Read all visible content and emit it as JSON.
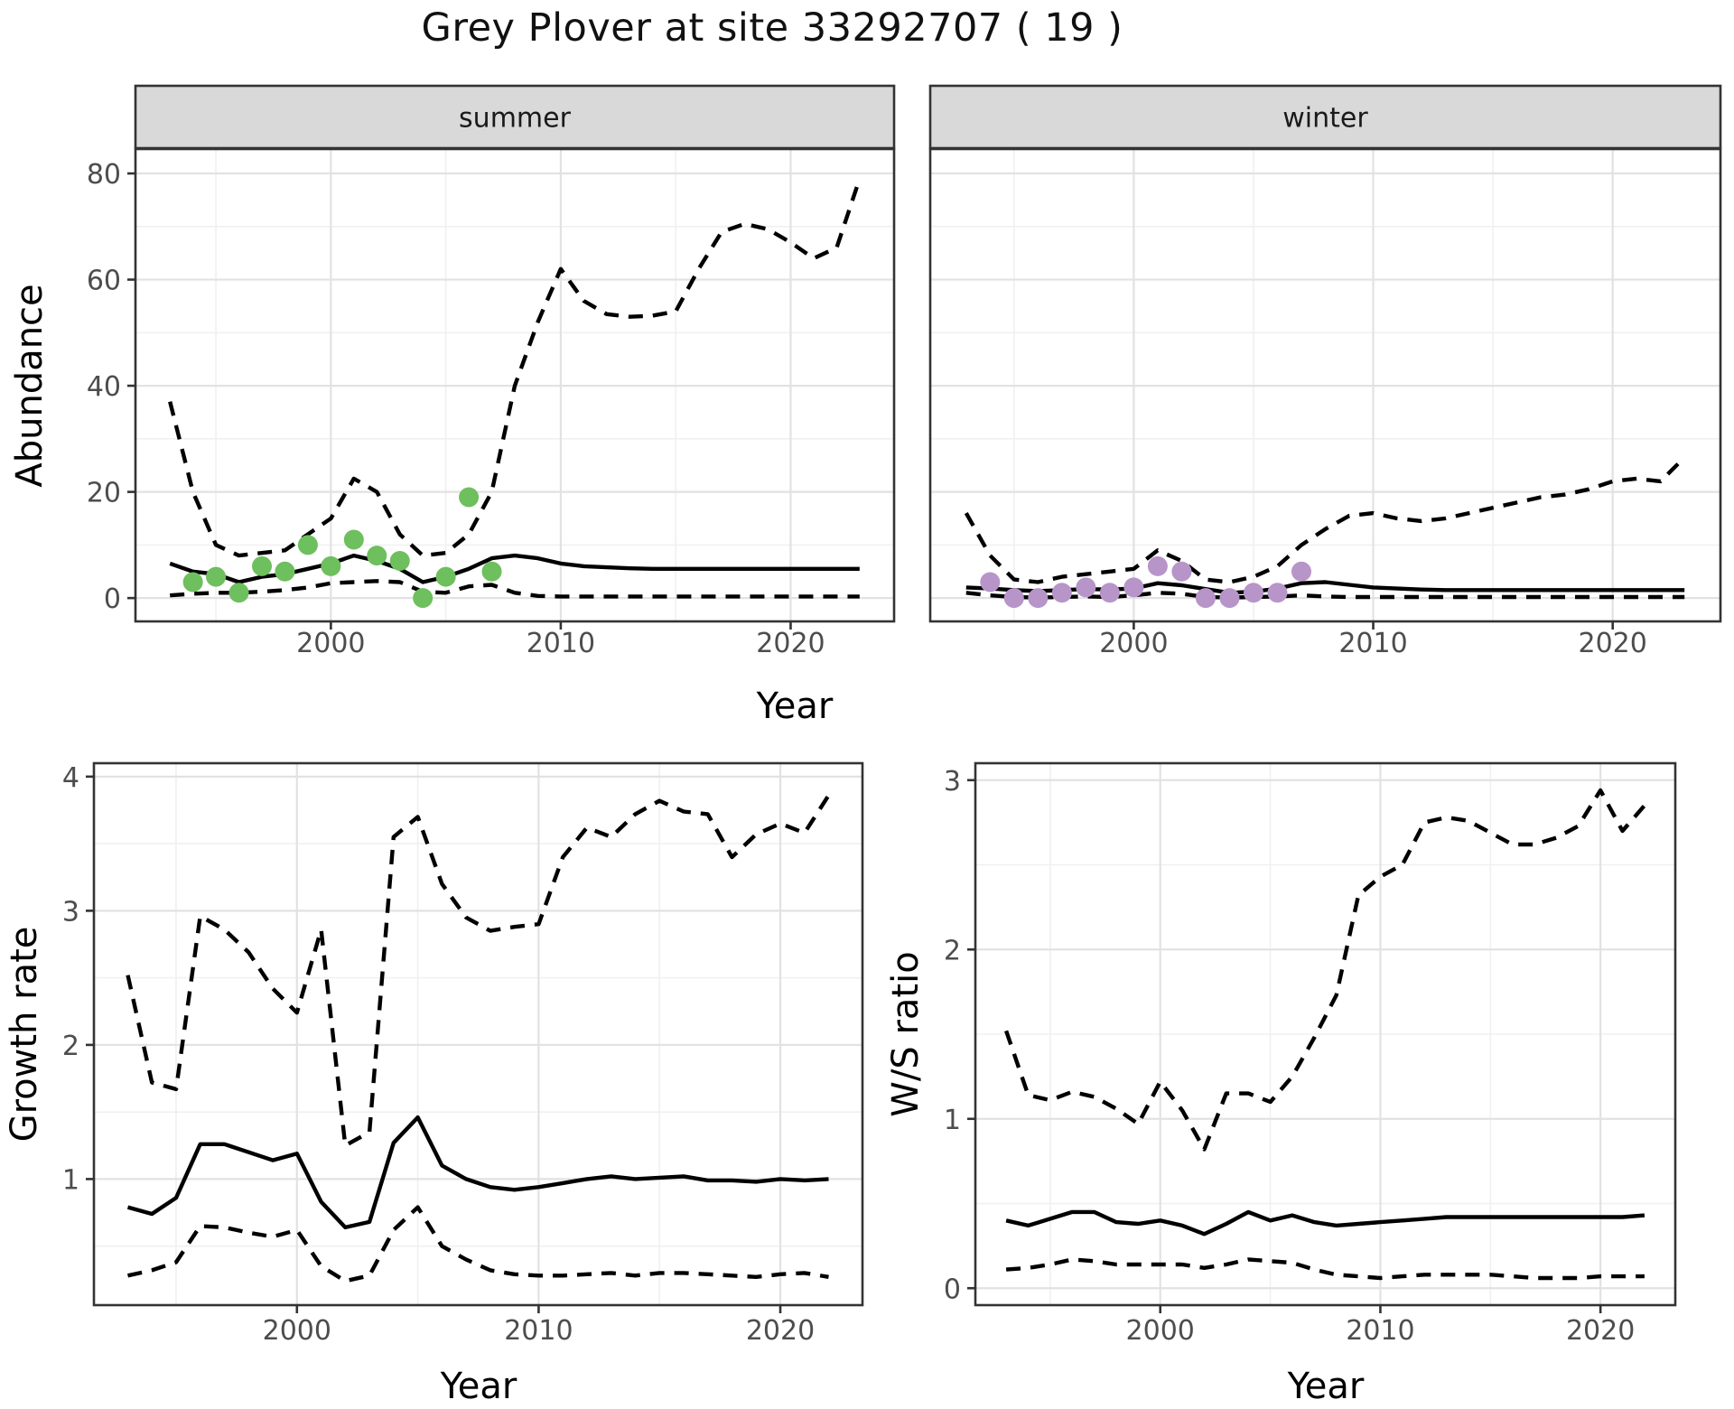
{
  "title": "Grey Plover at site 33292707 ( 19 )",
  "axes": {
    "x_label_top": "Year",
    "x_label_growth": "Year",
    "x_label_ws": "Year",
    "y_label_abundance": "Abundance",
    "y_label_growth": "Growth rate",
    "y_label_ws": "W/S ratio"
  },
  "facets": {
    "summer": "summer",
    "winter": "winter"
  },
  "colors": {
    "summer_points": "#6ebf5d",
    "winter_points": "#b795c8",
    "line": "#000000",
    "strip_bg": "#d9d9d9",
    "strip_text": "#1a1a1a",
    "panel_border": "#333333",
    "grid_major": "#e2e2e2",
    "grid_minor": "#f0f0f0",
    "axis_text": "#4d4d4d",
    "axis_title": "#000000"
  },
  "chart_data": [
    {
      "id": "abundance-summer",
      "type": "line",
      "facet_label": "summer",
      "ylabel": "Abundance",
      "xlabel": "Year",
      "xlim": [
        1991.5,
        2024.5
      ],
      "ylim": [
        -4.4,
        84.6
      ],
      "xticks": [
        2000,
        2010,
        2020
      ],
      "xminor": [
        1995,
        2005,
        2015
      ],
      "yticks": [
        0,
        20,
        40,
        60,
        80
      ],
      "yminor": [
        10,
        30,
        50,
        70
      ],
      "grid": true,
      "legend": "none",
      "years": [
        1993,
        1994,
        1995,
        1996,
        1997,
        1998,
        1999,
        2000,
        2001,
        2002,
        2003,
        2004,
        2005,
        2006,
        2007,
        2008,
        2009,
        2010,
        2011,
        2012,
        2013,
        2014,
        2015,
        2016,
        2017,
        2018,
        2019,
        2020,
        2021,
        2022,
        2023
      ],
      "series": [
        {
          "name": "upper_ci",
          "style": "dashed",
          "values": [
            37,
            20,
            10,
            8,
            8.5,
            9,
            12,
            15,
            22.5,
            20,
            12,
            8,
            8.5,
            12,
            20,
            40,
            52,
            62,
            56,
            53.5,
            53,
            53.2,
            54,
            62,
            69,
            70.5,
            69.5,
            67,
            64,
            66,
            79
          ]
        },
        {
          "name": "median",
          "style": "solid",
          "values": [
            6.5,
            5,
            4.5,
            3,
            4,
            4.5,
            5.5,
            6.5,
            8,
            7,
            5.5,
            3,
            4,
            5.5,
            7.5,
            8,
            7.5,
            6.5,
            6,
            5.8,
            5.6,
            5.5,
            5.5,
            5.5,
            5.5,
            5.5,
            5.5,
            5.5,
            5.5,
            5.5,
            5.5
          ]
        },
        {
          "name": "lower_ci",
          "style": "dashed",
          "values": [
            0.5,
            0.8,
            1,
            1,
            1.2,
            1.5,
            2,
            2.8,
            3,
            3.2,
            3,
            1.2,
            1,
            2.2,
            2.5,
            1,
            0.4,
            0.3,
            0.3,
            0.3,
            0.3,
            0.3,
            0.3,
            0.3,
            0.3,
            0.3,
            0.3,
            0.3,
            0.3,
            0.3,
            0.3
          ]
        }
      ],
      "points": {
        "name": "summer-observations",
        "color_key": "summer_points",
        "years": [
          1994,
          1995,
          1996,
          1997,
          1998,
          1999,
          2000,
          2001,
          2002,
          2003,
          2004,
          2005,
          2006,
          2007
        ],
        "values": [
          3,
          4,
          1,
          6,
          5,
          10,
          6,
          11,
          8,
          7,
          0,
          4,
          19,
          5
        ]
      }
    },
    {
      "id": "abundance-winter",
      "type": "line",
      "facet_label": "winter",
      "ylabel": "Abundance",
      "xlabel": "Year",
      "xlim": [
        1991.5,
        2024.5
      ],
      "ylim": [
        -4.4,
        84.6
      ],
      "xticks": [
        2000,
        2010,
        2020
      ],
      "xminor": [
        1995,
        2005,
        2015
      ],
      "yticks": [
        0,
        20,
        40,
        60,
        80
      ],
      "yminor": [
        10,
        30,
        50,
        70
      ],
      "grid": true,
      "legend": "none",
      "years": [
        1993,
        1994,
        1995,
        1996,
        1997,
        1998,
        1999,
        2000,
        2001,
        2002,
        2003,
        2004,
        2005,
        2006,
        2007,
        2008,
        2009,
        2010,
        2011,
        2012,
        2013,
        2014,
        2015,
        2016,
        2017,
        2018,
        2019,
        2020,
        2021,
        2022,
        2023
      ],
      "series": [
        {
          "name": "upper_ci",
          "style": "dashed",
          "values": [
            16,
            8,
            3.5,
            3,
            4,
            4.5,
            5,
            5.5,
            9,
            7,
            3.5,
            3,
            4,
            6,
            10,
            13,
            15.5,
            16,
            15,
            14.5,
            15,
            16,
            17,
            18,
            19,
            19.5,
            20.5,
            22,
            22.5,
            22,
            26.5
          ]
        },
        {
          "name": "median",
          "style": "solid",
          "values": [
            2,
            1.8,
            1.5,
            1.3,
            1.5,
            1.7,
            1.6,
            1.8,
            2.8,
            2.4,
            1.7,
            1,
            1.2,
            1.8,
            2.8,
            3,
            2.5,
            2,
            1.8,
            1.6,
            1.5,
            1.5,
            1.5,
            1.5,
            1.5,
            1.5,
            1.5,
            1.5,
            1.5,
            1.5,
            1.5
          ]
        },
        {
          "name": "lower_ci",
          "style": "dashed",
          "values": [
            1,
            0.5,
            0.2,
            0.1,
            0.2,
            0.3,
            0.2,
            0.5,
            1,
            0.8,
            0.2,
            0.1,
            0.2,
            0.3,
            0.5,
            0.3,
            0.2,
            0.2,
            0.2,
            0.2,
            0.2,
            0.2,
            0.2,
            0.2,
            0.2,
            0.2,
            0.2,
            0.2,
            0.2,
            0.2,
            0.2
          ]
        }
      ],
      "points": {
        "name": "winter-observations",
        "color_key": "winter_points",
        "years": [
          1994,
          1995,
          1996,
          1997,
          1998,
          1999,
          2000,
          2001,
          2002,
          2003,
          2004,
          2005,
          2006,
          2007
        ],
        "values": [
          3,
          0,
          0,
          1,
          2,
          1,
          2,
          6,
          5,
          0,
          0,
          1,
          1,
          5
        ]
      }
    },
    {
      "id": "growth-rate",
      "type": "line",
      "facet_label": "",
      "ylabel": "Growth rate",
      "xlabel": "Year",
      "xlim": [
        1991.6,
        2023.4
      ],
      "ylim": [
        0.06,
        4.1
      ],
      "xticks": [
        2000,
        2010,
        2020
      ],
      "xminor": [
        1995,
        2005,
        2015
      ],
      "yticks": [
        1,
        2,
        3,
        4
      ],
      "yminor": [
        0.5,
        1.5,
        2.5,
        3.5
      ],
      "grid": true,
      "legend": "none",
      "years": [
        1993,
        1994,
        1995,
        1996,
        1997,
        1998,
        1999,
        2000,
        2001,
        2002,
        2003,
        2004,
        2005,
        2006,
        2007,
        2008,
        2009,
        2010,
        2011,
        2012,
        2013,
        2014,
        2015,
        2016,
        2017,
        2018,
        2019,
        2020,
        2021,
        2022
      ],
      "series": [
        {
          "name": "upper_ci",
          "style": "dashed",
          "values": [
            2.52,
            1.72,
            1.67,
            2.96,
            2.86,
            2.69,
            2.42,
            2.24,
            2.86,
            1.25,
            1.35,
            3.55,
            3.7,
            3.2,
            2.95,
            2.85,
            2.88,
            2.9,
            3.4,
            3.62,
            3.55,
            3.72,
            3.82,
            3.74,
            3.72,
            3.4,
            3.57,
            3.65,
            3.58,
            3.86
          ]
        },
        {
          "name": "median",
          "style": "solid",
          "values": [
            0.79,
            0.74,
            0.86,
            1.26,
            1.26,
            1.2,
            1.14,
            1.19,
            0.83,
            0.64,
            0.68,
            1.27,
            1.46,
            1.1,
            1,
            0.94,
            0.92,
            0.94,
            0.97,
            1,
            1.02,
            1,
            1.01,
            1.02,
            0.99,
            0.99,
            0.98,
            1,
            0.99,
            1
          ]
        },
        {
          "name": "lower_ci",
          "style": "dashed",
          "values": [
            0.28,
            0.32,
            0.38,
            0.65,
            0.64,
            0.6,
            0.57,
            0.62,
            0.35,
            0.24,
            0.28,
            0.62,
            0.79,
            0.5,
            0.4,
            0.32,
            0.29,
            0.28,
            0.28,
            0.29,
            0.3,
            0.28,
            0.3,
            0.3,
            0.29,
            0.28,
            0.27,
            0.29,
            0.3,
            0.27
          ]
        }
      ],
      "points": null
    },
    {
      "id": "ws-ratio",
      "type": "line",
      "facet_label": "",
      "ylabel": "W/S ratio",
      "xlabel": "Year",
      "xlim": [
        1991.6,
        2023.4
      ],
      "ylim": [
        -0.1,
        3.1
      ],
      "xticks": [
        2000,
        2010,
        2020
      ],
      "xminor": [
        1995,
        2005,
        2015
      ],
      "yticks": [
        0,
        1,
        2,
        3
      ],
      "yminor": [
        0.5,
        1.5,
        2.5
      ],
      "grid": true,
      "legend": "none",
      "years": [
        1993,
        1994,
        1995,
        1996,
        1997,
        1998,
        1999,
        2000,
        2001,
        2002,
        2003,
        2004,
        2005,
        2006,
        2007,
        2008,
        2009,
        2010,
        2011,
        2012,
        2013,
        2014,
        2015,
        2016,
        2017,
        2018,
        2019,
        2020,
        2021,
        2022
      ],
      "series": [
        {
          "name": "upper_ci",
          "style": "dashed",
          "values": [
            1.52,
            1.14,
            1.11,
            1.16,
            1.13,
            1.06,
            0.97,
            1.22,
            1.05,
            0.82,
            1.15,
            1.15,
            1.1,
            1.25,
            1.48,
            1.73,
            2.32,
            2.43,
            2.5,
            2.75,
            2.78,
            2.76,
            2.69,
            2.62,
            2.62,
            2.66,
            2.73,
            2.94,
            2.7,
            2.85
          ]
        },
        {
          "name": "median",
          "style": "solid",
          "values": [
            0.4,
            0.37,
            0.41,
            0.45,
            0.45,
            0.39,
            0.38,
            0.4,
            0.37,
            0.32,
            0.38,
            0.45,
            0.4,
            0.43,
            0.39,
            0.37,
            0.38,
            0.39,
            0.4,
            0.41,
            0.42,
            0.42,
            0.42,
            0.42,
            0.42,
            0.42,
            0.42,
            0.42,
            0.42,
            0.43
          ]
        },
        {
          "name": "lower_ci",
          "style": "dashed",
          "values": [
            0.11,
            0.12,
            0.14,
            0.17,
            0.16,
            0.14,
            0.14,
            0.14,
            0.14,
            0.12,
            0.14,
            0.17,
            0.16,
            0.15,
            0.11,
            0.08,
            0.07,
            0.06,
            0.07,
            0.08,
            0.08,
            0.08,
            0.08,
            0.07,
            0.06,
            0.06,
            0.06,
            0.07,
            0.07,
            0.07
          ]
        }
      ],
      "points": null
    }
  ]
}
